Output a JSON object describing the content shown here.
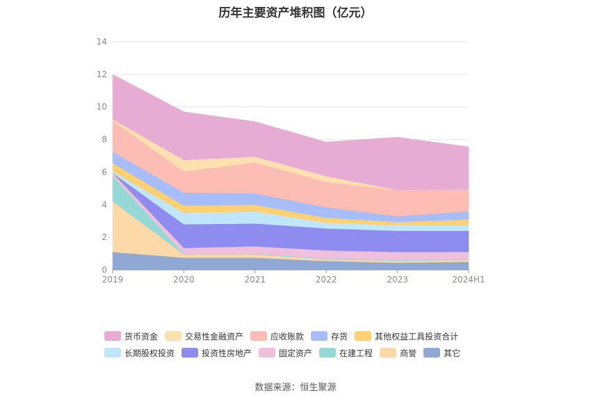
{
  "chart_data": {
    "type": "area",
    "stacked": true,
    "title": "历年主要资产堆积图（亿元）",
    "source": "数据来源：恒生聚源",
    "categories": [
      "2019",
      "2020",
      "2021",
      "2022",
      "2023",
      "2024H1"
    ],
    "ylim": [
      0,
      14
    ],
    "yticks": [
      "0",
      "2",
      "4",
      "6",
      "8",
      "10",
      "12",
      "14"
    ],
    "grid": true,
    "legend_position": "bottom",
    "series": [
      {
        "name": "其它",
        "color": "#8fa8d4",
        "values": [
          1.1,
          0.75,
          0.75,
          0.55,
          0.45,
          0.5
        ]
      },
      {
        "name": "商誉",
        "color": "#fcd9a6",
        "values": [
          3.1,
          0.2,
          0.2,
          0.1,
          0.1,
          0.1
        ]
      },
      {
        "name": "在建工程",
        "color": "#95d8d5",
        "values": [
          1.55,
          0.05,
          0.05,
          0.05,
          0.05,
          0.05
        ]
      },
      {
        "name": "固定资产",
        "color": "#f0bfdc",
        "values": [
          0.2,
          0.35,
          0.45,
          0.5,
          0.5,
          0.45
        ]
      },
      {
        "name": "投资性房地产",
        "color": "#8f8cef",
        "values": [
          0.0,
          1.45,
          1.4,
          1.35,
          1.3,
          1.3
        ]
      },
      {
        "name": "长期股权投资",
        "color": "#bfe6fa",
        "values": [
          0.1,
          0.7,
          0.75,
          0.35,
          0.35,
          0.35
        ]
      },
      {
        "name": "其他权益工具投资合计",
        "color": "#fdd072",
        "values": [
          0.5,
          0.45,
          0.4,
          0.3,
          0.2,
          0.35
        ]
      },
      {
        "name": "存货",
        "color": "#a6bdf7",
        "values": [
          0.7,
          0.8,
          0.7,
          0.65,
          0.35,
          0.5
        ]
      },
      {
        "name": "应收账款",
        "color": "#fcbdb5",
        "values": [
          1.9,
          1.3,
          1.9,
          1.55,
          1.6,
          1.35
        ]
      },
      {
        "name": "交易性金融资产",
        "color": "#fde0b0",
        "values": [
          0.1,
          0.7,
          0.35,
          0.35,
          0.0,
          0.0
        ]
      },
      {
        "name": "货币资金",
        "color": "#e7acd4",
        "values": [
          2.75,
          2.95,
          2.15,
          2.1,
          3.25,
          2.6
        ]
      }
    ],
    "legend_order": [
      [
        "货币资金",
        "交易性金融资产",
        "应收账款",
        "存货",
        "其他权益工具投资合计"
      ],
      [
        "长期股权投资",
        "投资性房地产",
        "固定资产",
        "在建工程",
        "商誉",
        "其它"
      ]
    ]
  }
}
